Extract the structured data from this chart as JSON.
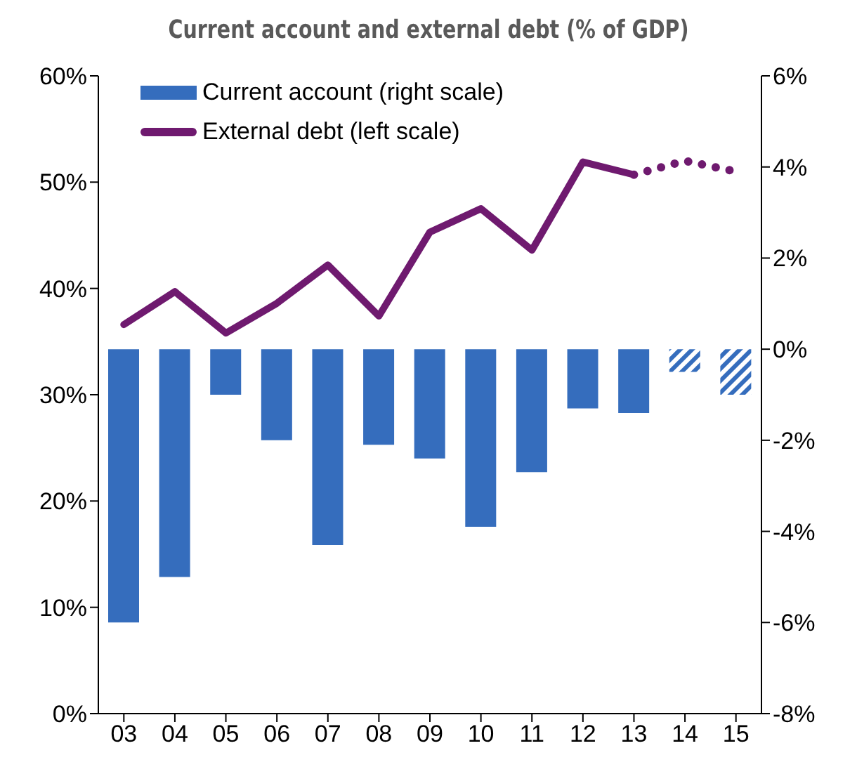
{
  "chart_data": {
    "type": "bar",
    "title": "Current account and external debt (% of GDP)",
    "categories": [
      "03",
      "04",
      "05",
      "06",
      "07",
      "08",
      "09",
      "10",
      "11",
      "12",
      "13",
      "14",
      "15"
    ],
    "stacked": true,
    "series": [
      {
        "name": "Current account (right scale)",
        "axis": "y2",
        "color": "#356dbd",
        "values": [
          -6.0,
          -5.0,
          -1.0,
          -2.0,
          -4.3,
          -2.1,
          -2.4,
          -3.9,
          -2.7,
          -1.3,
          -1.4,
          null,
          null
        ]
      },
      {
        "axis": "y2",
        "color": "#356dbd",
        "values": [
          null,
          null,
          null,
          null,
          null,
          null,
          null,
          null,
          null,
          null,
          null,
          -0.5,
          -1.0
        ]
      },
      {
        "name": "External debt (left scale)",
        "type": "line",
        "color": "#6f1a6f",
        "line_style": "solid",
        "values": [
          36.6,
          39.7,
          35.8,
          38.6,
          42.2,
          37.4,
          45.3,
          47.5,
          43.6,
          51.9,
          50.7,
          null,
          null
        ]
      },
      {
        "type": "line",
        "color": "#6f1a6f",
        "line_style": "dotted",
        "values": [
          null,
          null,
          null,
          null,
          null,
          null,
          null,
          null,
          null,
          null,
          50.7,
          52.0,
          51.0
        ]
      }
    ],
    "ylim": [
      0,
      60
    ],
    "yticks": [
      {
        "value": 0,
        "label": "0%"
      },
      {
        "value": 10,
        "label": "10%"
      },
      {
        "value": 20,
        "label": "20%"
      },
      {
        "value": 30,
        "label": "30%"
      },
      {
        "value": 40,
        "label": "40%"
      },
      {
        "value": 50,
        "label": "50%"
      },
      {
        "value": 60,
        "label": "60%"
      }
    ],
    "y2lim": [
      -8,
      6
    ],
    "y2ticks": [
      {
        "value": -8,
        "label": "-8%"
      },
      {
        "value": -6,
        "label": "-6%"
      },
      {
        "value": -4,
        "label": "-4%"
      },
      {
        "value": -2,
        "label": "-2%"
      },
      {
        "value": 0,
        "label": "0%"
      },
      {
        "value": 2,
        "label": "2%"
      },
      {
        "value": 4,
        "label": "4%"
      },
      {
        "value": 6,
        "label": "6%"
      }
    ],
    "grid": false,
    "legend": "top left"
  }
}
